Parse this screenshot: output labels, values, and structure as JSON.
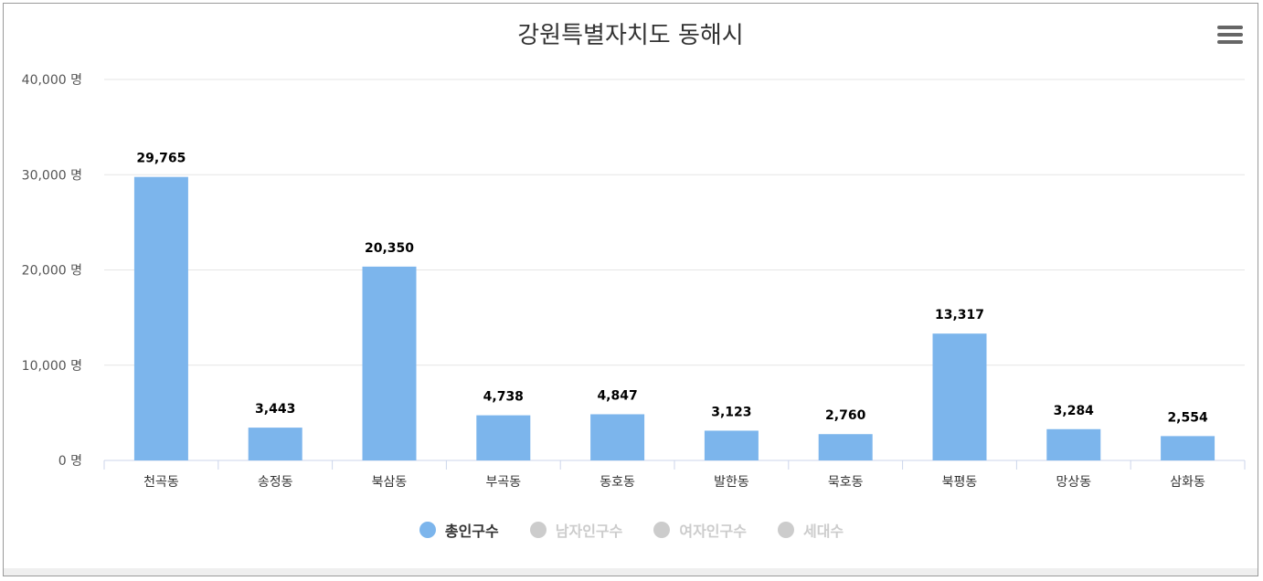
{
  "chart_data": {
    "type": "bar",
    "title": "강원특별자치도 동해시",
    "categories": [
      "천곡동",
      "송정동",
      "북삼동",
      "부곡동",
      "동호동",
      "발한동",
      "묵호동",
      "북평동",
      "망상동",
      "삼화동"
    ],
    "series": [
      {
        "name": "총인구수",
        "values": [
          29765,
          3443,
          20350,
          4738,
          4847,
          3123,
          2760,
          13317,
          3284,
          2554
        ],
        "visible": true
      }
    ],
    "data_labels": [
      "29,765",
      "3,443",
      "20,350",
      "4,738",
      "4,847",
      "3,123",
      "2,760",
      "13,317",
      "3,284",
      "2,554"
    ],
    "y_ticks": [
      0,
      10000,
      20000,
      30000,
      40000
    ],
    "y_tick_labels": [
      "0 명",
      "10,000 명",
      "20,000 명",
      "30,000 명",
      "40,000 명"
    ],
    "ylim": [
      0,
      40000
    ],
    "grid": true,
    "legend_position": "bottom-center",
    "bar_color": "#7cb5ec"
  },
  "legend": [
    {
      "label": "총인구수",
      "color": "#7cb5ec",
      "active": true
    },
    {
      "label": "남자인구수",
      "color": "#cccccc",
      "active": false
    },
    {
      "label": "여자인구수",
      "color": "#cccccc",
      "active": false
    },
    {
      "label": "세대수",
      "color": "#cccccc",
      "active": false
    }
  ],
  "menu": {
    "icon": "hamburger-menu-icon"
  }
}
